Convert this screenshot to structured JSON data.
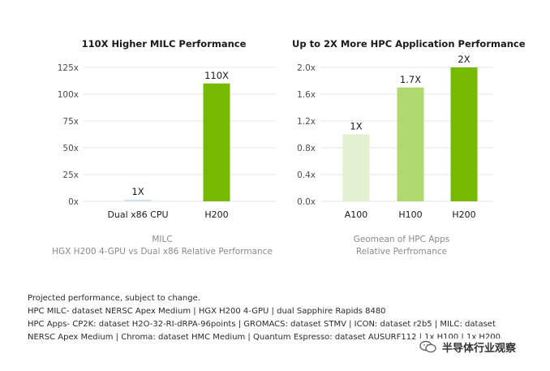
{
  "chart_data": [
    {
      "type": "bar",
      "title": "110X Higher MILC Performance",
      "categories": [
        "Dual x86 CPU",
        "H200"
      ],
      "values": [
        1,
        110
      ],
      "data_labels": [
        "1X",
        "110X"
      ],
      "bar_colors": [
        "#cfe0f3",
        "#76b900"
      ],
      "ylim": [
        0,
        125
      ],
      "yticks": [
        0,
        25,
        50,
        75,
        100,
        125
      ],
      "ytick_labels": [
        "0x",
        "25x",
        "50x",
        "75x",
        "100x",
        "125x"
      ],
      "grid": true,
      "caption": [
        "MILC",
        "HGX H200 4-GPU vs Dual x86 Relative Performance"
      ]
    },
    {
      "type": "bar",
      "title": "Up to 2X More HPC Application Performance",
      "categories": [
        "A100",
        "H100",
        "H200"
      ],
      "values": [
        1.0,
        1.7,
        2.0
      ],
      "data_labels": [
        "1X",
        "1.7X",
        "2X"
      ],
      "bar_colors": [
        "#e3f0cf",
        "#b0d96f",
        "#76b900"
      ],
      "ylim": [
        0,
        2.0
      ],
      "yticks": [
        0,
        0.4,
        0.8,
        1.2,
        1.6,
        2.0
      ],
      "ytick_labels": [
        "0.0x",
        "0.4x",
        "0.8x",
        "1.2x",
        "1.6x",
        "2.0x"
      ],
      "grid": true,
      "caption": [
        "Geomean of HPC Apps",
        "Relative Perfromance"
      ]
    }
  ],
  "notes": [
    "Projected performance, subject to change.",
    "HPC MILC- dataset NERSC Apex Medium | HGX H200 4-GPU | dual Sapphire Rapids 8480",
    "HPC Apps- CP2K: dataset H2O-32-RI-dRPA-96points | GROMACS: dataset STMV | ICON: dataset r2b5 | MILC: dataset",
    "NERSC Apex Medium | Chroma: dataset HMC Medium | Quantum Espresso: dataset AUSURF112 | 1x H100 | 1x H200."
  ],
  "watermark": "半导体行业观察",
  "colors": {
    "grid": "#e6e6e6",
    "axis_text": "#4d4d4d",
    "caption_text": "#8a8a8a"
  }
}
